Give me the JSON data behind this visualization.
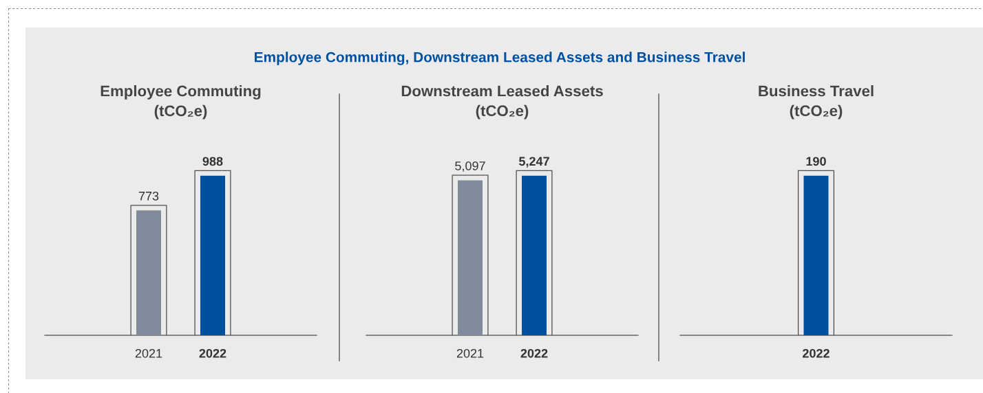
{
  "chart_data": [
    {
      "type": "bar",
      "title": "Employee Commuting\n(tCO₂e)",
      "annotations": [
        "Employee Commuting, Downstream Leased Assets and Business Travel"
      ],
      "categories": [
        "2021",
        "2022"
      ],
      "values": [
        773,
        988
      ],
      "colors": [
        "#7f8a9a",
        "#0050a0"
      ],
      "data_labels": true,
      "grid": false,
      "legend": false
    },
    {
      "type": "bar",
      "title": "Downstream Leased Assets\n(tCO₂e)",
      "categories": [
        "2021",
        "2022"
      ],
      "values": [
        5097,
        5247
      ],
      "value_labels": [
        "5,097",
        "5,247"
      ],
      "colors": [
        "#7f8a9a",
        "#0050a0"
      ],
      "grid": false,
      "legend": false
    },
    {
      "type": "bar",
      "title": "Business Travel\n(tCO₂e)",
      "categories": [
        "2022"
      ],
      "values": [
        190
      ],
      "colors": [
        "#0050a0"
      ],
      "data_labels": true,
      "grid": false,
      "legend": false
    }
  ]
}
